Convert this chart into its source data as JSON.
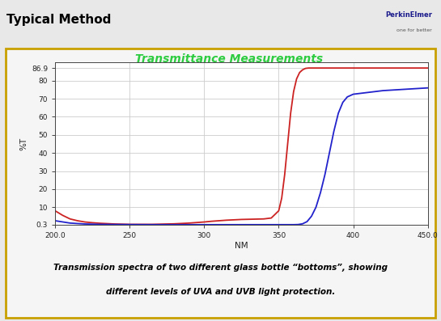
{
  "title": "Transmittance Measurements",
  "title_color": "#2ECC40",
  "xlabel": "NM",
  "ylabel": "%T",
  "xlim": [
    200.0,
    450.0
  ],
  "ylim": [
    0.3,
    90
  ],
  "yticks": [
    0.3,
    10,
    20,
    30,
    40,
    50,
    60,
    70,
    80,
    86.9
  ],
  "ytick_labels": [
    "0.3",
    "10",
    "20",
    "30",
    "40",
    "50",
    "60",
    "70",
    "80",
    "86.9"
  ],
  "xticks": [
    200.0,
    250,
    300,
    350,
    400,
    450.0
  ],
  "xtick_labels": [
    "200.0",
    "250",
    "300",
    "350",
    "400",
    "450.0"
  ],
  "header_title": "Typical Method",
  "caption_line1": "Transmission spectra of two different glass bottle “bottoms”, showing",
  "caption_line2": "different levels of UVA and UVB light protection.",
  "red_x": [
    200,
    205,
    210,
    215,
    220,
    225,
    230,
    235,
    240,
    245,
    250,
    255,
    260,
    265,
    270,
    275,
    280,
    285,
    290,
    295,
    300,
    305,
    310,
    315,
    320,
    325,
    330,
    335,
    340,
    345,
    350,
    352,
    354,
    356,
    358,
    360,
    362,
    364,
    366,
    368,
    370,
    375,
    380,
    385,
    390,
    395,
    400,
    410,
    420,
    435,
    450
  ],
  "red_y": [
    8.0,
    5.5,
    3.5,
    2.5,
    1.8,
    1.4,
    1.1,
    0.9,
    0.7,
    0.6,
    0.5,
    0.5,
    0.5,
    0.5,
    0.6,
    0.7,
    0.8,
    1.0,
    1.2,
    1.5,
    1.8,
    2.2,
    2.5,
    2.8,
    3.0,
    3.2,
    3.3,
    3.4,
    3.5,
    4.0,
    8.0,
    15.0,
    28.0,
    45.0,
    62.0,
    74.0,
    81.0,
    84.5,
    86.0,
    86.8,
    87.0,
    87.0,
    87.0,
    87.0,
    87.0,
    87.0,
    87.0,
    87.0,
    87.0,
    87.0,
    87.0
  ],
  "blue_x": [
    200,
    210,
    220,
    230,
    240,
    250,
    260,
    270,
    280,
    290,
    300,
    310,
    320,
    330,
    340,
    350,
    355,
    360,
    363,
    366,
    369,
    372,
    375,
    378,
    381,
    384,
    387,
    390,
    393,
    396,
    400,
    405,
    410,
    420,
    430,
    440,
    450
  ],
  "blue_y": [
    2.5,
    1.2,
    0.7,
    0.5,
    0.42,
    0.38,
    0.35,
    0.33,
    0.33,
    0.33,
    0.33,
    0.33,
    0.33,
    0.33,
    0.33,
    0.33,
    0.33,
    0.33,
    0.4,
    0.8,
    2.0,
    5.0,
    10.0,
    18.0,
    28.0,
    40.0,
    52.0,
    62.0,
    68.0,
    71.0,
    72.5,
    73.0,
    73.5,
    74.5,
    75.0,
    75.5,
    76.0
  ],
  "red_color": "#CC2222",
  "blue_color": "#2222CC",
  "bg_color": "#E8E8E8",
  "plot_bg": "#FFFFFF",
  "grid_color": "#CCCCCC",
  "header_bg": "#DCDCDC",
  "outer_border_color": "#C8A000",
  "header_border_color": "#4472C4",
  "header_title_fontsize": 11,
  "title_fontsize": 10,
  "caption_fontsize": 7.5
}
